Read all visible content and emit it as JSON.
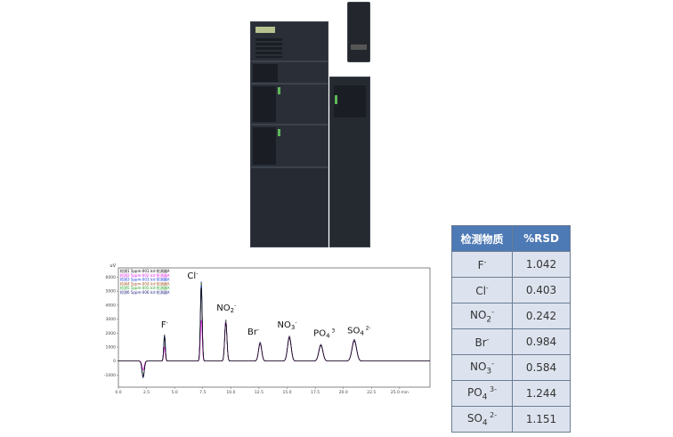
{
  "instrument_photo": {
    "description_icon": "hplc-system-image"
  },
  "chromatogram": {
    "chart_data": {
      "type": "line",
      "ylabel": "uV",
      "xlabel": "min",
      "xlim": [
        0,
        27.7
      ],
      "ylim": [
        -1500,
        6300
      ],
      "x_ticks": [
        "0.0",
        "2.5",
        "5.0",
        "7.5",
        "10.0",
        "12.5",
        "15.0",
        "17.5",
        "20.0",
        "22.5",
        "25.0 min"
      ],
      "x_tick_values": [
        0,
        2.5,
        5,
        7.5,
        10,
        12.5,
        15,
        17.5,
        20,
        22.5,
        25
      ],
      "y_ticks": [
        "6000",
        "5000",
        "4000",
        "3000",
        "2000",
        "1000",
        "0",
        "-1000"
      ],
      "y_tick_values": [
        6000,
        5000,
        4000,
        3000,
        2000,
        1000,
        0,
        -1000
      ],
      "legend": [
        {
          "name": "检测1 5ppm-001.lcd 检测器A",
          "color": "#000000"
        },
        {
          "name": "检测2 5ppm-002.lcd 检测器A",
          "color": "#e020e0"
        },
        {
          "name": "检测3 5ppm-003.lcd 检测器A",
          "color": "#2040e0"
        },
        {
          "name": "检测4 5ppm-004.lcd 检测器A",
          "color": "#a05020"
        },
        {
          "name": "检测5 5ppm-005.lcd 检测器A",
          "color": "#20a020"
        },
        {
          "name": "检测6 5ppm-006.lcd 检测器A",
          "color": "#202080"
        }
      ],
      "legend_position": "top-left",
      "peaks": [
        {
          "time": 2.2,
          "height": -1200,
          "width": 0.1
        },
        {
          "time": 4.1,
          "height": 1900,
          "width": 0.07
        },
        {
          "time": 7.37,
          "height": 5700,
          "width": 0.08
        },
        {
          "time": 9.55,
          "height": 2950,
          "width": 0.1
        },
        {
          "time": 12.6,
          "height": 1350,
          "width": 0.14
        },
        {
          "time": 15.2,
          "height": 1800,
          "width": 0.16
        },
        {
          "time": 18.0,
          "height": 1200,
          "width": 0.18
        },
        {
          "time": 20.97,
          "height": 1550,
          "width": 0.2
        }
      ],
      "peak_labels": [
        {
          "base": "F",
          "sub": "",
          "sup": "-",
          "time": 4.1,
          "y": 2400
        },
        {
          "base": "Cl",
          "sub": "",
          "sup": "-",
          "time": 6.6,
          "y": 5900
        },
        {
          "base": "NO",
          "sub": "2",
          "sup": "-",
          "time": 9.6,
          "y": 3600
        },
        {
          "base": "Br",
          "sub": "",
          "sup": "-",
          "time": 12.0,
          "y": 1900
        },
        {
          "base": "NO",
          "sub": "3",
          "sup": "-",
          "time": 15.0,
          "y": 2400
        },
        {
          "base": "PO",
          "sub": "4",
          "sup": " 3",
          "time": 18.3,
          "y": 1800
        },
        {
          "base": "SO",
          "sub": "4",
          "sup": " 2-",
          "time": 21.4,
          "y": 2000
        }
      ]
    }
  },
  "rsd_table": {
    "headers": [
      "检测物质",
      "%RSD"
    ],
    "rows": [
      {
        "base": "F",
        "sub": "",
        "sup": "-",
        "rsd": "1.042"
      },
      {
        "base": "Cl",
        "sub": "",
        "sup": "-",
        "rsd": "0.403"
      },
      {
        "base": "NO",
        "sub": "2",
        "sup": "-",
        "rsd": "0.242"
      },
      {
        "base": "Br",
        "sub": "",
        "sup": "-",
        "rsd": "0.984"
      },
      {
        "base": "NO",
        "sub": "3",
        "sup": "-",
        "rsd": "0.584"
      },
      {
        "base": "PO",
        "sub": "4",
        "sup": " 3-",
        "rsd": "1.244"
      },
      {
        "base": "SO",
        "sub": "4",
        "sup": " 2-",
        "rsd": "1.151"
      }
    ],
    "header_color": "#4d79b5",
    "row_color": "#dde3ee"
  }
}
